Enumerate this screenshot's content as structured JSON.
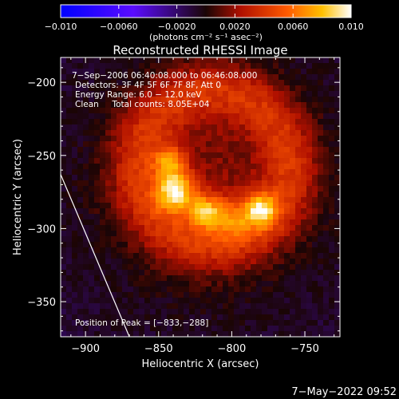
{
  "chart_data": {
    "type": "heatmap",
    "title": "Reconstructed RHESSI Image",
    "xlabel": "Heliocentric X (arcsec)",
    "ylabel": "Heliocentric Y (arcsec)",
    "xlim": [
      -917,
      -726
    ],
    "ylim": [
      -374,
      -183
    ],
    "xticks": [
      -900,
      -850,
      -800,
      -750
    ],
    "yticks": [
      -200,
      -250,
      -300,
      -350
    ],
    "xtick_labels": [
      "−900",
      "−850",
      "−800",
      "−750"
    ],
    "ytick_labels": [
      "−200",
      "−250",
      "−300",
      "−350"
    ],
    "colorbar": {
      "min": -0.01,
      "max": 0.01,
      "ticks": [
        -0.01,
        -0.006,
        -0.002,
        0.002,
        0.006,
        0.01
      ],
      "tick_labels": [
        "−0.010",
        "−0.0060",
        "−0.0020",
        "0.0020",
        "0.0060",
        "0.010"
      ],
      "unit_label": "(photons cm⁻² s⁻¹ asec⁻²)"
    },
    "annotations": [
      "7−Sep−2006 06:40:08.000 to 06:46:08.000",
      "Detectors: 3F 4F 5F 6F 7F 8F, Att 0",
      "Energy Range: 6.0 − 12.0 keV",
      "Clean     Total counts: 8.05E+04",
      "Position of Peak = [−833,−288]"
    ],
    "peak": [
      -833,
      -288
    ],
    "limb_line": [
      [
        -917,
        -263
      ],
      [
        -870,
        -374
      ]
    ],
    "footer_date": "7−May−2022 09:52",
    "sources": [
      {
        "x": -838,
        "y": -275,
        "sigma": 9,
        "amp": 0.0075
      },
      {
        "x": -842,
        "y": -255,
        "sigma": 8,
        "amp": 0.005
      },
      {
        "x": -818,
        "y": -288,
        "sigma": 8,
        "amp": 0.0055
      },
      {
        "x": -780,
        "y": -287,
        "sigma": 8,
        "amp": 0.0058
      },
      {
        "x": -800,
        "y": -292,
        "sigma": 10,
        "amp": 0.0035
      }
    ],
    "ring": {
      "cx": -812,
      "cy": -258,
      "r": 52,
      "width": 14,
      "amp": 0.0034
    },
    "background": {
      "cx": -815,
      "cy": -265,
      "r": 92,
      "width": 40,
      "amp": 0.0018,
      "offset": -0.0014
    }
  }
}
